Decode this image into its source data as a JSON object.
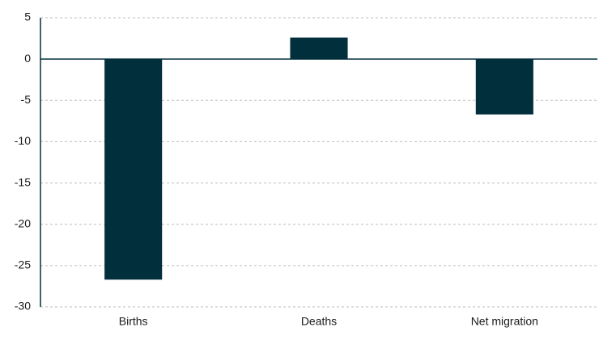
{
  "chart_data": {
    "type": "bar",
    "categories": [
      "Births",
      "Deaths",
      "Net migration"
    ],
    "values": [
      -26.7,
      2.6,
      -6.7
    ],
    "color": "#022f3c",
    "ylim": [
      -30,
      5
    ],
    "yticks": [
      -30,
      -25,
      -20,
      -15,
      -10,
      -5,
      0,
      5
    ],
    "grid": true
  }
}
